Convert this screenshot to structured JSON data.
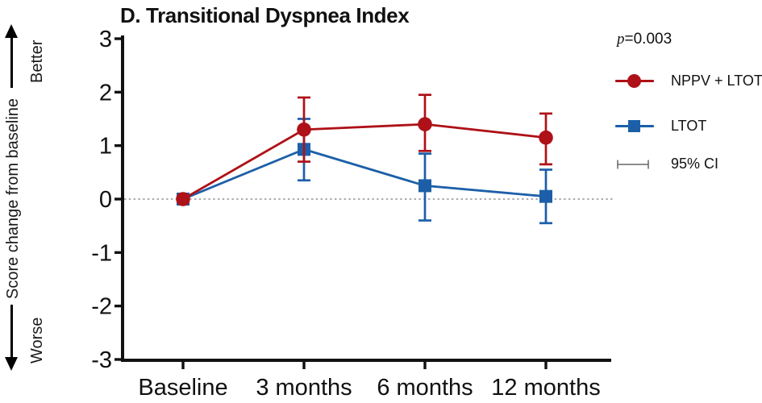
{
  "chart_data": {
    "type": "line",
    "title": "D. Transitional Dyspnea Index",
    "categories": [
      "Baseline",
      "3 months",
      "6 months",
      "12 months"
    ],
    "series": [
      {
        "name": "NPPV + LTOT",
        "marker": "circle",
        "color": "#AE1117",
        "values": [
          0,
          1.3,
          1.4,
          1.15
        ],
        "ci_low": [
          null,
          0.7,
          0.9,
          0.65
        ],
        "ci_high": [
          null,
          1.9,
          1.95,
          1.6
        ]
      },
      {
        "name": "LTOT",
        "marker": "square",
        "color": "#1C5FA8",
        "values": [
          0,
          0.93,
          0.25,
          0.05
        ],
        "ci_low": [
          null,
          0.35,
          -0.4,
          -0.45
        ],
        "ci_high": [
          null,
          1.5,
          0.85,
          0.55
        ]
      }
    ],
    "ylabel": "Score change from baseline",
    "direction_better": "Better",
    "direction_worse": "Worse",
    "xlabel": "",
    "ylim": [
      -3,
      3
    ],
    "yticks": [
      3,
      2,
      1,
      0,
      -1,
      -2,
      -3
    ],
    "zero_line_dotted": true,
    "p_symbol": "p",
    "p_rest": "=0.003",
    "ci_label": "95% CI",
    "legend_position": "right",
    "axis_color": "#111111",
    "zero_line_color": "#8f8f8f",
    "ci_symbol_color": "#666666"
  }
}
